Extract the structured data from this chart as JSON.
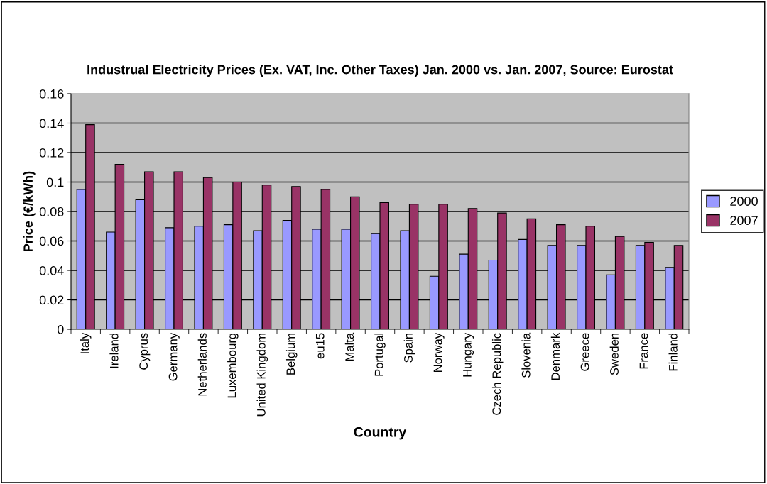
{
  "chart_data": {
    "type": "bar",
    "title": "Industrual Electricity Prices (Ex. VAT, Inc. Other Taxes) Jan. 2000 vs. Jan. 2007, Source: Eurostat",
    "xlabel": "Country",
    "ylabel": "Price (€/kWh)",
    "categories": [
      "Italy",
      "Ireland",
      "Cyprus",
      "Germany",
      "Netherlands",
      "Luxembourg",
      "United Kingdom",
      "Belgium",
      "eu15",
      "Malta",
      "Portugal",
      "Spain",
      "Norway",
      "Hungary",
      "Czech Republic",
      "Slovenia",
      "Denmark",
      "Greece",
      "Sweden",
      "France",
      "Finland"
    ],
    "series": [
      {
        "name": "2000",
        "color": "#9999ff",
        "values": [
          0.095,
          0.066,
          0.088,
          0.069,
          0.07,
          0.071,
          0.067,
          0.074,
          0.068,
          0.068,
          0.065,
          0.067,
          0.036,
          0.051,
          0.047,
          0.061,
          0.057,
          0.057,
          0.037,
          0.057,
          0.042
        ]
      },
      {
        "name": "2007",
        "color": "#993366",
        "values": [
          0.139,
          0.112,
          0.107,
          0.107,
          0.103,
          0.1,
          0.098,
          0.097,
          0.095,
          0.09,
          0.086,
          0.085,
          0.085,
          0.082,
          0.079,
          0.075,
          0.071,
          0.07,
          0.063,
          0.059,
          0.057
        ]
      }
    ],
    "ylim": [
      0,
      0.16
    ],
    "yticks": [
      {
        "value": 0,
        "label": "0"
      },
      {
        "value": 0.02,
        "label": "0.02"
      },
      {
        "value": 0.04,
        "label": "0.04"
      },
      {
        "value": 0.06,
        "label": "0.06"
      },
      {
        "value": 0.08,
        "label": "0.08"
      },
      {
        "value": 0.1,
        "label": "0.1"
      },
      {
        "value": 0.12,
        "label": "0.12"
      },
      {
        "value": 0.14,
        "label": "0.14"
      },
      {
        "value": 0.16,
        "label": "0.16"
      }
    ],
    "grid": "y",
    "legend": "right"
  }
}
